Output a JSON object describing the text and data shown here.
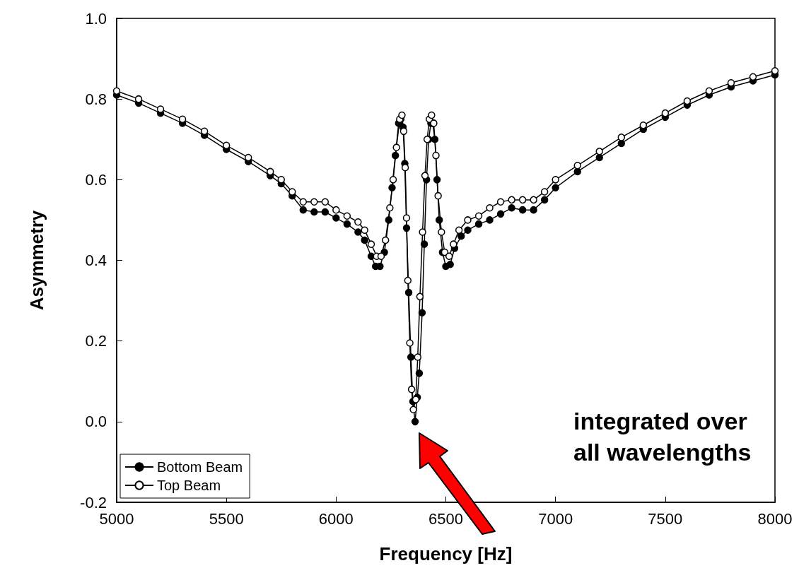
{
  "chart_data": {
    "type": "line",
    "xlabel": "Frequency [Hz]",
    "ylabel": "Asymmetry",
    "xlim": [
      5000,
      8000
    ],
    "xticks": [
      5000,
      5500,
      6000,
      6500,
      7000,
      7500,
      8000
    ],
    "ylim": [
      -0.2,
      1.0
    ],
    "yticks": [
      {
        "value": -0.2,
        "label": "-0.2"
      },
      {
        "value": 0,
        "label": "0.0"
      },
      {
        "value": 0.2,
        "label": "0.2"
      },
      {
        "value": 0.4,
        "label": "0.4"
      },
      {
        "value": 0.6,
        "label": "0.6"
      },
      {
        "value": 0.8,
        "label": "0.8"
      },
      {
        "value": 1.0,
        "label": "1.0"
      }
    ],
    "grid": false,
    "legend": "bottom left",
    "marker": "circle",
    "line_style": "solid",
    "annotations": [
      "integrated over all wavelengths"
    ],
    "series": [
      {
        "name": "Bottom Beam",
        "color": "#000000",
        "x": [
          5000,
          5100,
          5200,
          5300,
          5400,
          5500,
          5600,
          5700,
          5750,
          5800,
          5850,
          5900,
          5950,
          6000,
          6050,
          6100,
          6130,
          6160,
          6180,
          6200,
          6220,
          6240,
          6255,
          6270,
          6285,
          6295,
          6305,
          6313,
          6321,
          6331,
          6341,
          6350,
          6360,
          6370,
          6379,
          6392,
          6402,
          6412,
          6422,
          6432,
          6440,
          6450,
          6460,
          6470,
          6485,
          6500,
          6520,
          6540,
          6570,
          6600,
          6650,
          6700,
          6750,
          6800,
          6850,
          6900,
          6950,
          7000,
          7100,
          7200,
          7300,
          7400,
          7500,
          7600,
          7700,
          7800,
          7900,
          8000
        ],
        "values": [
          0.81,
          0.79,
          0.765,
          0.74,
          0.71,
          0.675,
          0.645,
          0.61,
          0.59,
          0.56,
          0.525,
          0.52,
          0.52,
          0.505,
          0.49,
          0.47,
          0.45,
          0.41,
          0.385,
          0.385,
          0.42,
          0.5,
          0.58,
          0.66,
          0.74,
          0.75,
          0.73,
          0.64,
          0.48,
          0.32,
          0.16,
          0.05,
          0.0,
          0.06,
          0.12,
          0.27,
          0.44,
          0.6,
          0.7,
          0.74,
          0.74,
          0.7,
          0.6,
          0.5,
          0.42,
          0.385,
          0.39,
          0.43,
          0.46,
          0.475,
          0.49,
          0.5,
          0.515,
          0.53,
          0.525,
          0.525,
          0.55,
          0.58,
          0.62,
          0.655,
          0.69,
          0.725,
          0.755,
          0.785,
          0.81,
          0.83,
          0.845,
          0.86
        ]
      },
      {
        "name": "Top Beam",
        "color": "#ffffff",
        "x": [
          5000,
          5100,
          5200,
          5300,
          5400,
          5500,
          5600,
          5700,
          5750,
          5800,
          5850,
          5900,
          5950,
          6000,
          6050,
          6100,
          6130,
          6160,
          6185,
          6205,
          6225,
          6245,
          6260,
          6275,
          6290,
          6300,
          6308,
          6315,
          6321,
          6327,
          6336,
          6344,
          6352,
          6363,
          6372,
          6382,
          6394,
          6405,
          6415,
          6425,
          6435,
          6445,
          6455,
          6465,
          6480,
          6495,
          6515,
          6535,
          6560,
          6600,
          6650,
          6700,
          6750,
          6800,
          6850,
          6900,
          6950,
          7000,
          7100,
          7200,
          7300,
          7400,
          7500,
          7600,
          7700,
          7800,
          7900,
          8000
        ],
        "values": [
          0.82,
          0.8,
          0.775,
          0.75,
          0.72,
          0.685,
          0.655,
          0.62,
          0.6,
          0.57,
          0.545,
          0.545,
          0.545,
          0.525,
          0.51,
          0.495,
          0.475,
          0.44,
          0.41,
          0.41,
          0.45,
          0.53,
          0.6,
          0.68,
          0.75,
          0.76,
          0.72,
          0.63,
          0.505,
          0.35,
          0.195,
          0.08,
          0.03,
          0.055,
          0.16,
          0.31,
          0.47,
          0.61,
          0.7,
          0.75,
          0.76,
          0.74,
          0.66,
          0.56,
          0.47,
          0.42,
          0.41,
          0.44,
          0.475,
          0.5,
          0.51,
          0.53,
          0.545,
          0.55,
          0.55,
          0.55,
          0.57,
          0.6,
          0.635,
          0.67,
          0.705,
          0.735,
          0.765,
          0.795,
          0.82,
          0.84,
          0.855,
          0.87
        ]
      }
    ]
  }
}
